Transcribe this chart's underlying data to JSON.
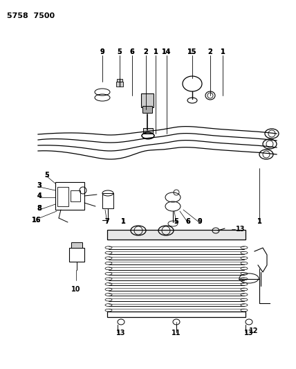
{
  "title": "5758  7500",
  "bg_color": "#ffffff",
  "fg_color": "#000000",
  "fig_width": 4.28,
  "fig_height": 5.33,
  "dpi": 100
}
